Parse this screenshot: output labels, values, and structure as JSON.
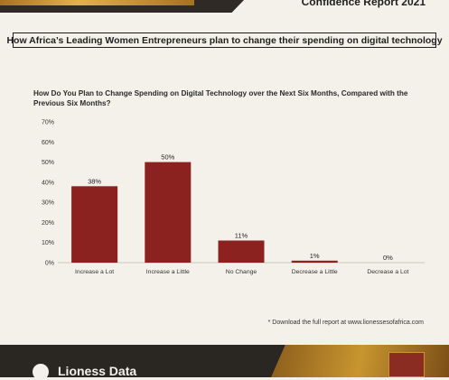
{
  "header": {
    "report_label": "Confidence Report 2021"
  },
  "headline": "How Africa’s Leading Women Entrepreneurs plan to change their spending on digital technology",
  "footnote": "* Download the full report at www.lionessesofafrica.com",
  "logo": {
    "text": "Lioness Data"
  },
  "colors": {
    "bar": "#8b2220",
    "axis_text": "#333333",
    "grid": "#e0dcd4"
  },
  "chart_data": {
    "type": "bar",
    "title": "How Do You Plan to Change Spending on Digital Technology over the Next Six Months, Compared with the Previous Six Months?",
    "categories": [
      "Increase a Lot",
      "Increase a Little",
      "No Change",
      "Decrease a Little",
      "Decrease a Lot"
    ],
    "values": [
      38,
      50,
      11,
      1,
      0
    ],
    "value_labels": [
      "38%",
      "50%",
      "11%",
      "1%",
      "0%"
    ],
    "ylim": [
      0,
      70
    ],
    "yticks": [
      "0%",
      "10%",
      "20%",
      "30%",
      "40%",
      "50%",
      "60%",
      "70%"
    ],
    "xlabel": "",
    "ylabel": ""
  }
}
